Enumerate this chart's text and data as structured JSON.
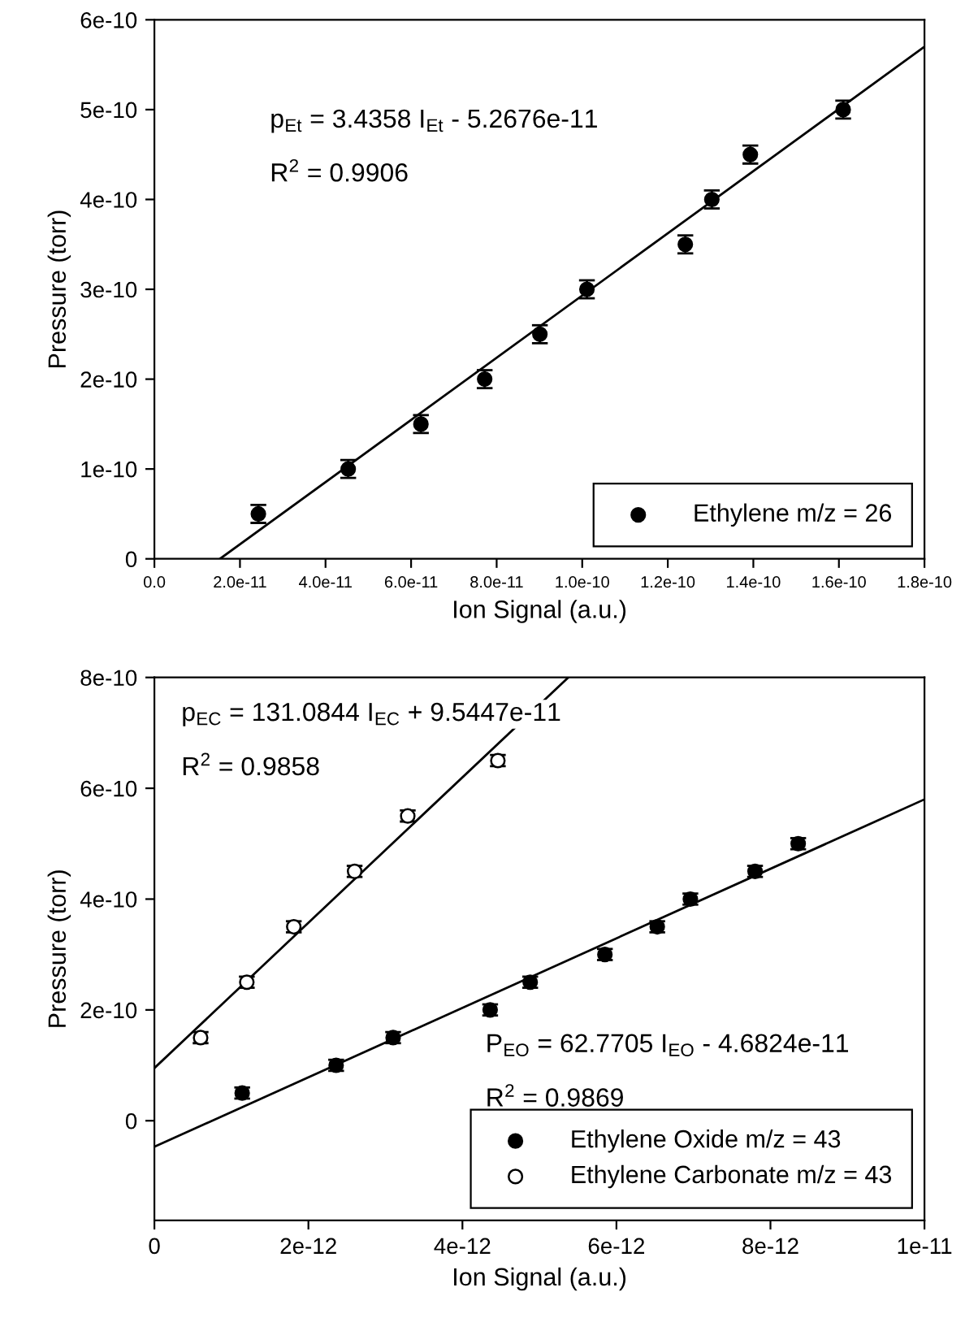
{
  "chart_data": [
    {
      "type": "scatter",
      "xlabel": "Ion Signal (a.u.)",
      "ylabel": "Pressure (torr)",
      "annotations": [
        "p$_{Et}$ = 3.4358 I$_{Et}$ - 5.2676e-11",
        "R$^{2}$ = 0.9906"
      ],
      "xlim": [
        0,
        1.8e-10
      ],
      "ylim": [
        0,
        6e-10
      ],
      "xticks": [
        {
          "value": 0,
          "label": "0.0"
        },
        {
          "value": 2e-11,
          "label": "2.0e-11"
        },
        {
          "value": 4e-11,
          "label": "4.0e-11"
        },
        {
          "value": 6e-11,
          "label": "6.0e-11"
        },
        {
          "value": 8e-11,
          "label": "8.0e-11"
        },
        {
          "value": 1e-10,
          "label": "1.0e-10"
        },
        {
          "value": 1.2e-10,
          "label": "1.2e-10"
        },
        {
          "value": 1.4e-10,
          "label": "1.4e-10"
        },
        {
          "value": 1.6e-10,
          "label": "1.6e-10"
        },
        {
          "value": 1.8e-10,
          "label": "1.8e-10"
        }
      ],
      "yticks": [
        {
          "value": 0,
          "label": "0"
        },
        {
          "value": 1e-10,
          "label": "1e-10"
        },
        {
          "value": 2e-10,
          "label": "2e-10"
        },
        {
          "value": 3e-10,
          "label": "3e-10"
        },
        {
          "value": 4e-10,
          "label": "4e-10"
        },
        {
          "value": 5e-10,
          "label": "5e-10"
        },
        {
          "value": 6e-10,
          "label": "6e-10"
        }
      ],
      "grid": false,
      "legend": "bottom right",
      "marker": "circle",
      "series": [
        {
          "name": "Ethylene m/z = 26",
          "color": "#000000",
          "x": [
            2.43e-11,
            4.53e-11,
            6.23e-11,
            7.72e-11,
            9.01e-11,
            1.011e-10,
            1.241e-10,
            1.303e-10,
            1.393e-10,
            1.61e-10
          ],
          "values": [
            5e-11,
            1e-10,
            1.5e-10,
            2e-10,
            2.5e-10,
            3e-10,
            3.5e-10,
            4e-10,
            4.5e-10,
            5e-10
          ],
          "errors": [
            1e-11,
            1e-11,
            1e-11,
            1e-11,
            1e-11,
            1e-11,
            1e-11,
            1e-11,
            1e-11,
            1e-11
          ]
        },
        {
          "type": "line",
          "marker": "none",
          "color": "#000000",
          "x": [
            1.533e-11,
            1.8e-10
          ],
          "values": [
            0,
            5.7e-10
          ]
        }
      ]
    },
    {
      "type": "scatter",
      "xlabel": "Ion Signal (a.u.)",
      "ylabel": "Pressure (torr)",
      "annotations": [
        "p$_{EC}$ = 131.0844 I$_{EC}$ + 9.5447e-11",
        "R$^{2}$ = 0.9858",
        "P$_{EO}$ = 62.7705 I$_{EO}$ - 4.6824e-11",
        "R$^{2}$ = 0.9869"
      ],
      "xlim": [
        0,
        1e-11
      ],
      "ylim": [
        -1.8e-10,
        8e-10
      ],
      "xticks": [
        {
          "value": 0,
          "label": "0"
        },
        {
          "value": 2e-12,
          "label": "2e-12"
        },
        {
          "value": 4e-12,
          "label": "4e-12"
        },
        {
          "value": 6e-12,
          "label": "6e-12"
        },
        {
          "value": 8e-12,
          "label": "8e-12"
        },
        {
          "value": 1e-11,
          "label": "1e-11"
        }
      ],
      "yticks": [
        {
          "value": 0,
          "label": "0"
        },
        {
          "value": 2e-10,
          "label": "2e-10"
        },
        {
          "value": 4e-10,
          "label": "4e-10"
        },
        {
          "value": 6e-10,
          "label": "6e-10"
        },
        {
          "value": 8e-10,
          "label": "8e-10"
        }
      ],
      "grid": false,
      "legend": "bottom right",
      "marker": "circle",
      "series": [
        {
          "name": "Ethylene Oxide m/z = 43",
          "color": "#000000",
          "x": [
            1.14e-12,
            2.36e-12,
            3.1e-12,
            4.36e-12,
            4.88e-12,
            5.85e-12,
            6.53e-12,
            6.96e-12,
            7.8e-12,
            8.36e-12
          ],
          "values": [
            5e-11,
            1e-10,
            1.5e-10,
            2e-10,
            2.5e-10,
            3e-10,
            3.5e-10,
            4e-10,
            4.5e-10,
            5e-10
          ],
          "errors": [
            1e-11,
            1e-11,
            1e-11,
            1e-11,
            1e-11,
            1e-11,
            1e-11,
            1e-11,
            1e-11,
            1e-11
          ]
        },
        {
          "name": "Ethylene Carbonate m/z = 43",
          "color": "#ffffff",
          "x": [
            6e-13,
            1.2e-12,
            1.81e-12,
            2.6e-12,
            3.29e-12,
            4.46e-12
          ],
          "values": [
            1.5e-10,
            2.5e-10,
            3.5e-10,
            4.5e-10,
            5.5e-10,
            6.5e-10
          ],
          "errors": [
            1e-11,
            1e-11,
            1e-11,
            1e-11,
            1e-11,
            1e-11
          ]
        },
        {
          "type": "line",
          "marker": "none",
          "color": "#000000",
          "x": [
            0,
            5.375e-12
          ],
          "values": [
            9.5e-11,
            8e-10
          ]
        },
        {
          "type": "line",
          "marker": "none",
          "color": "#000000",
          "x": [
            0,
            1e-11
          ],
          "values": [
            -4.7e-11,
            5.8e-10
          ]
        }
      ]
    }
  ]
}
